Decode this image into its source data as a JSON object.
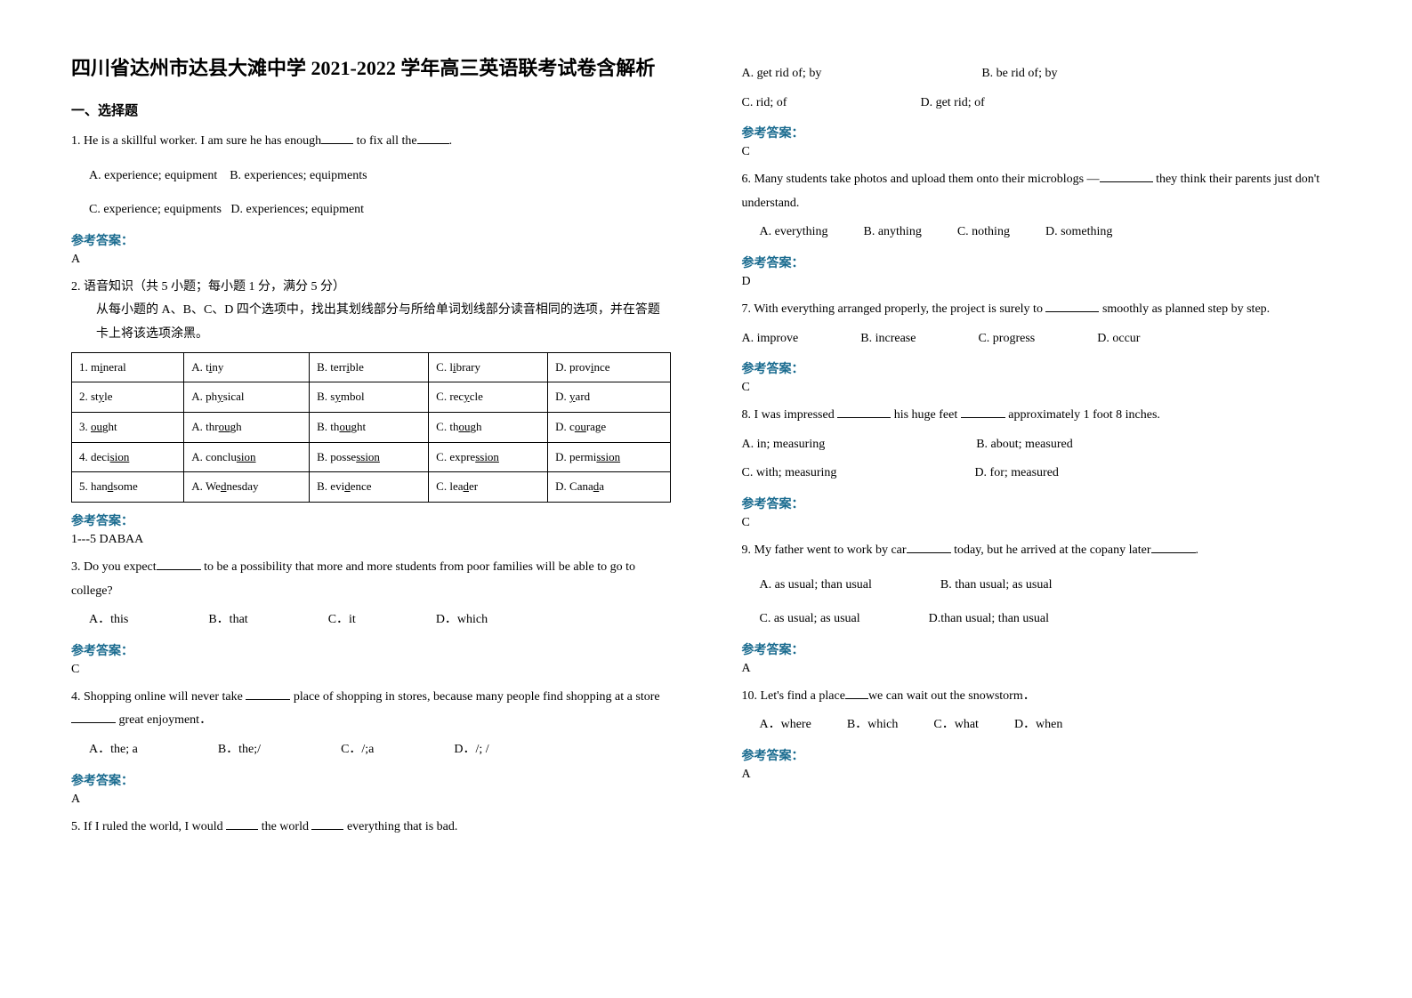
{
  "title": "四川省达州市达县大滩中学 2021-2022 学年高三英语联考试卷含解析",
  "section1_title": "一、选择题",
  "answer_label": "参考答案：",
  "q1": {
    "text_a": "1. He is a skillful worker. I am sure he has enough",
    "text_b": " to fix all the",
    "text_c": ".",
    "optA": "A. experience; equipment",
    "optB": "B. experiences; equipments",
    "optC": "C. experience; equipments",
    "optD": "D. experiences; equipment",
    "answer": "A"
  },
  "q2": {
    "title": "2. 语音知识（共 5 小题；每小题 1 分，满分 5 分）",
    "instr": "从每小题的 A、B、C、D 四个选项中，找出其划线部分与所给单词划线部分读音相同的选项，并在答题卡上将该选项涂黑。",
    "table": [
      [
        "1. m<u>i</u>neral",
        "A. t<u>i</u>ny",
        "B. terr<u>i</u>ble",
        "C. l<u>i</u>brary",
        "D. prov<u>i</u>nce"
      ],
      [
        "2. st<u>y</u>le",
        "A. ph<u>y</u>sical",
        "B. s<u>y</u>mbol",
        "C. rec<u>y</u>cle",
        "D. <u>y</u>ard"
      ],
      [
        "3. <u>ou</u>ght",
        "A. thr<u>ou</u>gh",
        "B. th<u>ou</u>ght",
        "C. th<u>ou</u>gh",
        "D. c<u>ou</u>rage"
      ],
      [
        "4. deci<u>sion</u>",
        "A. conclu<u>sion</u>",
        "B. posse<u>ssion</u>",
        "C. expre<u>ssion</u>",
        "D. permi<u>ssion</u>"
      ],
      [
        "5. han<u>d</u>some",
        "A. We<u>d</u>nesday",
        "B. evi<u>d</u>ence",
        "C. lea<u>d</u>er",
        "D. Cana<u>d</u>a"
      ]
    ],
    "answer": "1---5 DABAA"
  },
  "q3": {
    "text_a": "3. Do you expect",
    "text_b": " to be a possibility that more and more students from poor families will be able to go to college?",
    "optA": "A．this",
    "optB": "B．that",
    "optC": "C．it",
    "optD": "D．which",
    "answer": "C"
  },
  "q4": {
    "text_a": "4. Shopping online will never take ",
    "text_b": " place of shopping in stores, because many people find shopping at a store ",
    "text_c": " great enjoyment．",
    "optA": "A．the; a",
    "optB": "B．the;/",
    "optC": "C．/;a",
    "optD": "D．/; /",
    "answer": "A"
  },
  "q5": {
    "text_a": "5. If I ruled the world, I would ",
    "text_b": " the world ",
    "text_c": " everything that is bad.",
    "optA": "A. get rid of; by",
    "optB": "B. be rid of; by",
    "optC": "C. rid; of",
    "optD": "D. get rid; of",
    "answer": "C"
  },
  "q6": {
    "text_a": "6. Many students take photos and upload them onto their microblogs —",
    "text_b": " they think their parents just don't understand.",
    "optA": "A. everything",
    "optB": "B. anything",
    "optC": "C. nothing",
    "optD": "D. something",
    "answer": "D"
  },
  "q7": {
    "text_a": "7. With everything arranged properly, the project is surely to ",
    "text_b": " smoothly as planned step by step.",
    "optA": "A. improve",
    "optB": "B. increase",
    "optC": "C. progress",
    "optD": "D. occur",
    "answer": "C"
  },
  "q8": {
    "text_a": "8. I was impressed ",
    "text_b": " his huge feet ",
    "text_c": " approximately 1 foot 8 inches.",
    "optA": "A. in; measuring",
    "optB": "B. about; measured",
    "optC": "C. with; measuring",
    "optD": "D. for; measured",
    "answer": "C"
  },
  "q9": {
    "text_a": "9. My father went to work by car",
    "text_b": " today, but he arrived at the copany later",
    "text_c": ".",
    "optA": "A. as usual; than usual",
    "optB": "B. than usual; as usual",
    "optC": "C. as usual; as usual",
    "optD": "D.than usual; than usual",
    "answer": "A"
  },
  "q10": {
    "text_a": "10. Let's find a place",
    "text_b": "we can wait out the snowstorm．",
    "optA": "A．where",
    "optB": "B．which",
    "optC": "C．what",
    "optD": "D．when",
    "answer": "A"
  }
}
